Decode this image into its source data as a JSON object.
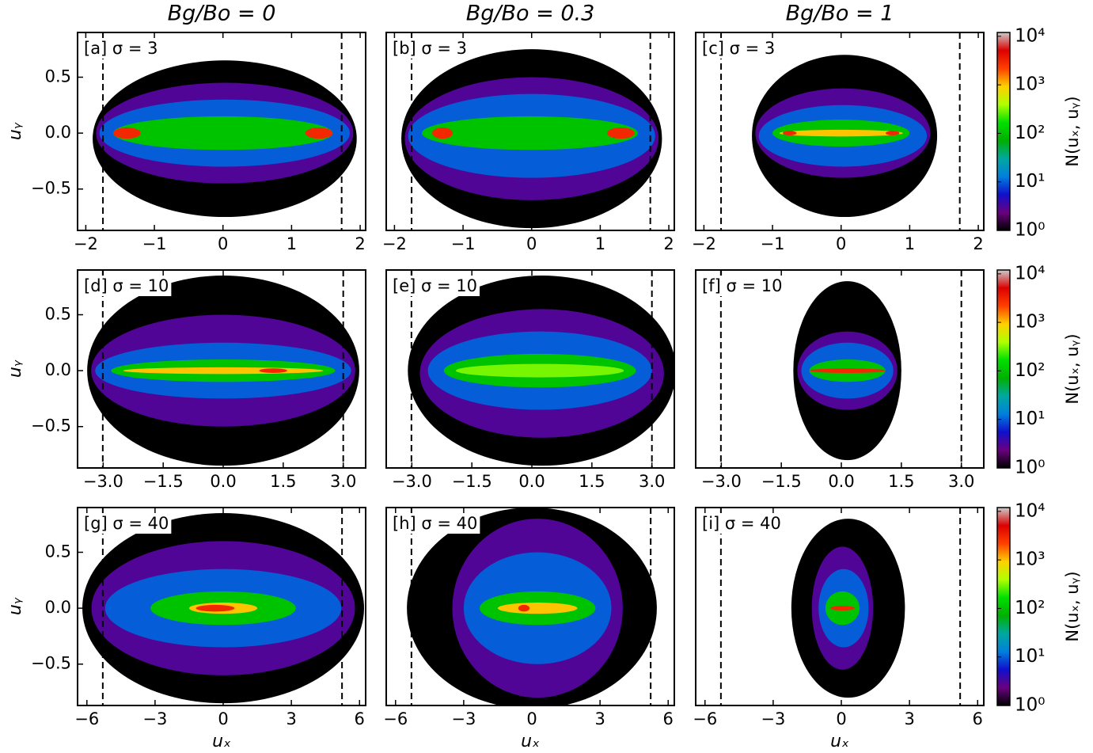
{
  "chart_data": [
    {
      "type": "heatmap",
      "title": "Bg/Bo = 0",
      "label": "[a] σ = 3",
      "ylabel": "uᵧ",
      "xlim": [
        -2.12,
        2.08
      ],
      "ylim": [
        -0.87,
        0.9
      ],
      "xticks": [
        {
          "value": -2,
          "label": "−2"
        },
        {
          "value": -1,
          "label": "−1"
        },
        0,
        1,
        2
      ],
      "yticks": [
        {
          "value": -0.5,
          "label": "−0.5"
        },
        {
          "value": 0,
          "label": "0.0"
        },
        0.5
      ],
      "vlines": [
        -1.75,
        1.73
      ],
      "regions": [
        {
          "level": 1,
          "ux": [
            -1.9,
            1.95
          ],
          "uy": [
            -0.75,
            0.65
          ]
        },
        {
          "level": 3,
          "ux": [
            -1.85,
            1.9
          ],
          "uy": [
            -0.45,
            0.45
          ]
        },
        {
          "level": 10,
          "ux": [
            -1.8,
            1.85
          ],
          "uy": [
            -0.3,
            0.3
          ]
        },
        {
          "level": 100,
          "ux": [
            -1.6,
            1.6
          ],
          "uy": [
            -0.15,
            0.15
          ]
        },
        {
          "level": 3000,
          "ux": [
            -1.6,
            -1.2
          ],
          "uy": [
            -0.05,
            0.05
          ]
        },
        {
          "level": 3000,
          "ux": [
            1.2,
            1.6
          ],
          "uy": [
            -0.05,
            0.05
          ]
        }
      ]
    },
    {
      "type": "heatmap",
      "title": "Bg/Bo = 0.3",
      "label": "[b] σ = 3",
      "xlim": [
        -2.12,
        2.08
      ],
      "ylim": [
        -0.87,
        0.9
      ],
      "xticks": [
        {
          "value": -2,
          "label": "−2"
        },
        {
          "value": -1,
          "label": "−1"
        },
        0,
        1,
        2
      ],
      "vlines": [
        -1.75,
        1.73
      ],
      "regions": [
        {
          "level": 1,
          "ux": [
            -1.9,
            1.9
          ],
          "uy": [
            -0.85,
            0.75
          ]
        },
        {
          "level": 3,
          "ux": [
            -1.85,
            1.85
          ],
          "uy": [
            -0.6,
            0.5
          ]
        },
        {
          "level": 10,
          "ux": [
            -1.8,
            1.8
          ],
          "uy": [
            -0.4,
            0.35
          ]
        },
        {
          "level": 100,
          "ux": [
            -1.6,
            1.55
          ],
          "uy": [
            -0.15,
            0.15
          ]
        },
        {
          "level": 3000,
          "ux": [
            -1.45,
            -1.15
          ],
          "uy": [
            -0.05,
            0.05
          ]
        },
        {
          "level": 3000,
          "ux": [
            1.1,
            1.5
          ],
          "uy": [
            -0.05,
            0.05
          ]
        }
      ]
    },
    {
      "type": "heatmap",
      "title": "Bg/Bo = 1",
      "label": "[c] σ = 3",
      "xlim": [
        -2.12,
        2.08
      ],
      "ylim": [
        -0.87,
        0.9
      ],
      "xticks": [
        {
          "value": -2,
          "label": "−2"
        },
        {
          "value": -1,
          "label": "−1"
        },
        0,
        1,
        2
      ],
      "vlines": [
        -1.75,
        1.73
      ],
      "regions": [
        {
          "level": 1,
          "ux": [
            -1.3,
            1.4
          ],
          "uy": [
            -0.75,
            0.7
          ]
        },
        {
          "level": 3,
          "ux": [
            -1.25,
            1.3
          ],
          "uy": [
            -0.4,
            0.4
          ]
        },
        {
          "level": 10,
          "ux": [
            -1.2,
            1.25
          ],
          "uy": [
            -0.3,
            0.25
          ]
        },
        {
          "level": 100,
          "ux": [
            -1.0,
            1.0
          ],
          "uy": [
            -0.12,
            0.12
          ]
        },
        {
          "level": 1000,
          "ux": [
            -0.9,
            0.9
          ],
          "uy": [
            -0.03,
            0.03
          ]
        },
        {
          "level": 3000,
          "ux": [
            -0.85,
            -0.65
          ],
          "uy": [
            -0.02,
            0.02
          ]
        },
        {
          "level": 3000,
          "ux": [
            0.65,
            0.85
          ],
          "uy": [
            -0.02,
            0.02
          ]
        }
      ],
      "colorbar": {
        "label": "N(uₓ, uᵧ)",
        "clim": [
          1,
          12000
        ],
        "log": true,
        "ticks": [
          {
            "value": 1,
            "label": "10⁰"
          },
          {
            "value": 10,
            "label": "10¹"
          },
          {
            "value": 100,
            "label": "10²"
          },
          {
            "value": 1000,
            "label": "10³"
          },
          {
            "value": 10000,
            "label": "10⁴"
          }
        ]
      }
    },
    {
      "type": "heatmap",
      "label": "[d] σ = 10",
      "ylabel": "uᵧ",
      "xlim": [
        -3.64,
        3.56
      ],
      "ylim": [
        -0.87,
        0.9
      ],
      "xticks": [
        {
          "value": -3,
          "label": "−3.0"
        },
        {
          "value": -1.5,
          "label": "−1.5"
        },
        {
          "value": 0,
          "label": "0.0"
        },
        1.5,
        {
          "value": 3,
          "label": "3.0"
        }
      ],
      "yticks": [
        {
          "value": -0.5,
          "label": "−0.5"
        },
        {
          "value": 0,
          "label": "0.0"
        },
        0.5
      ],
      "vlines": [
        -3.01,
        3.0
      ],
      "regions": [
        {
          "level": 1,
          "ux": [
            -3.4,
            3.4
          ],
          "uy": [
            -0.85,
            0.85
          ]
        },
        {
          "level": 3,
          "ux": [
            -3.3,
            3.3
          ],
          "uy": [
            -0.5,
            0.5
          ]
        },
        {
          "level": 10,
          "ux": [
            -3.2,
            3.2
          ],
          "uy": [
            -0.25,
            0.25
          ]
        },
        {
          "level": 100,
          "ux": [
            -2.8,
            2.8
          ],
          "uy": [
            -0.1,
            0.1
          ]
        },
        {
          "level": 1000,
          "ux": [
            -2.5,
            2.5
          ],
          "uy": [
            -0.03,
            0.03
          ]
        },
        {
          "level": 3000,
          "ux": [
            0.9,
            1.6
          ],
          "uy": [
            -0.02,
            0.02
          ]
        }
      ]
    },
    {
      "type": "heatmap",
      "label": "[e] σ = 10",
      "xlim": [
        -3.64,
        3.56
      ],
      "ylim": [
        -0.87,
        0.9
      ],
      "xticks": [
        {
          "value": -3,
          "label": "−3.0"
        },
        {
          "value": -1.5,
          "label": "−1.5"
        },
        {
          "value": 0,
          "label": "0.0"
        },
        1.5,
        {
          "value": 3,
          "label": "3.0"
        }
      ],
      "vlines": [
        -3.01,
        3.0
      ],
      "regions": [
        {
          "level": 1,
          "ux": [
            -3.1,
            3.6
          ],
          "uy": [
            -0.85,
            0.85
          ]
        },
        {
          "level": 3,
          "ux": [
            -2.8,
            3.3
          ],
          "uy": [
            -0.6,
            0.55
          ]
        },
        {
          "level": 10,
          "ux": [
            -2.6,
            3.0
          ],
          "uy": [
            -0.35,
            0.35
          ]
        },
        {
          "level": 100,
          "ux": [
            -2.2,
            2.6
          ],
          "uy": [
            -0.15,
            0.15
          ]
        },
        {
          "level": 300,
          "ux": [
            -1.9,
            2.3
          ],
          "uy": [
            -0.06,
            0.06
          ]
        }
      ]
    },
    {
      "type": "heatmap",
      "label": "[f] σ = 10",
      "xlim": [
        -3.64,
        3.56
      ],
      "ylim": [
        -0.87,
        0.9
      ],
      "xticks": [
        {
          "value": -3,
          "label": "−3.0"
        },
        {
          "value": -1.5,
          "label": "−1.5"
        },
        {
          "value": 0,
          "label": "0.0"
        },
        1.5,
        {
          "value": 3,
          "label": "3.0"
        }
      ],
      "vlines": [
        -3.01,
        3.0
      ],
      "regions": [
        {
          "level": 1,
          "ux": [
            -1.2,
            1.5
          ],
          "uy": [
            -0.8,
            0.8
          ]
        },
        {
          "level": 3,
          "ux": [
            -1.1,
            1.4
          ],
          "uy": [
            -0.35,
            0.35
          ]
        },
        {
          "level": 10,
          "ux": [
            -1.0,
            1.3
          ],
          "uy": [
            -0.25,
            0.25
          ]
        },
        {
          "level": 100,
          "ux": [
            -0.8,
            1.1
          ],
          "uy": [
            -0.1,
            0.1
          ]
        },
        {
          "level": 3000,
          "ux": [
            -0.8,
            1.1
          ],
          "uy": [
            -0.02,
            0.02
          ]
        }
      ],
      "colorbar": {
        "label": "N(uₓ, uᵧ)",
        "clim": [
          1,
          12000
        ],
        "log": true,
        "ticks": [
          {
            "value": 1,
            "label": "10⁰"
          },
          {
            "value": 10,
            "label": "10¹"
          },
          {
            "value": 100,
            "label": "10²"
          },
          {
            "value": 1000,
            "label": "10³"
          },
          {
            "value": 10000,
            "label": "10⁴"
          }
        ]
      }
    },
    {
      "type": "heatmap",
      "label": "[g] σ = 40",
      "ylabel": "uᵧ",
      "xlabel": "uₓ",
      "xlim": [
        -6.41,
        6.27
      ],
      "ylim": [
        -0.87,
        0.9
      ],
      "xticks": [
        {
          "value": -6,
          "label": "−6"
        },
        {
          "value": -3,
          "label": "−3"
        },
        0,
        3,
        6
      ],
      "yticks": [
        {
          "value": -0.5,
          "label": "−0.5"
        },
        {
          "value": 0,
          "label": "0.0"
        },
        0.5
      ],
      "vlines": [
        -5.3,
        5.23
      ],
      "regions": [
        {
          "level": 1,
          "ux": [
            -6.2,
            6.2
          ],
          "uy": [
            -0.85,
            0.85
          ]
        },
        {
          "level": 3,
          "ux": [
            -5.8,
            5.8
          ],
          "uy": [
            -0.6,
            0.6
          ]
        },
        {
          "level": 10,
          "ux": [
            -5.2,
            5.2
          ],
          "uy": [
            -0.35,
            0.35
          ]
        },
        {
          "level": 100,
          "ux": [
            -3.2,
            3.2
          ],
          "uy": [
            -0.15,
            0.15
          ]
        },
        {
          "level": 1000,
          "ux": [
            -1.5,
            1.5
          ],
          "uy": [
            -0.05,
            0.05
          ]
        },
        {
          "level": 3000,
          "ux": [
            -1.2,
            0.5
          ],
          "uy": [
            -0.03,
            0.03
          ]
        }
      ]
    },
    {
      "type": "heatmap",
      "label": "[h] σ = 40",
      "xlabel": "uₓ",
      "xlim": [
        -6.41,
        6.27
      ],
      "ylim": [
        -0.87,
        0.9
      ],
      "xticks": [
        {
          "value": -6,
          "label": "−6"
        },
        {
          "value": -3,
          "label": "−3"
        },
        0,
        3,
        6
      ],
      "vlines": [
        -5.3,
        5.23
      ],
      "regions": [
        {
          "level": 1,
          "ux": [
            -5.5,
            5.5
          ],
          "uy": [
            -0.9,
            0.9
          ]
        },
        {
          "level": 3,
          "ux": [
            -3.5,
            4.0
          ],
          "uy": [
            -0.8,
            0.8
          ]
        },
        {
          "level": 10,
          "ux": [
            -3.0,
            3.5
          ],
          "uy": [
            -0.5,
            0.5
          ]
        },
        {
          "level": 100,
          "ux": [
            -2.3,
            2.8
          ],
          "uy": [
            -0.15,
            0.15
          ]
        },
        {
          "level": 1000,
          "ux": [
            -1.5,
            2.0
          ],
          "uy": [
            -0.05,
            0.05
          ]
        },
        {
          "level": 3000,
          "ux": [
            -0.6,
            -0.1
          ],
          "uy": [
            -0.03,
            0.03
          ]
        }
      ]
    },
    {
      "type": "heatmap",
      "label": "[i] σ = 40",
      "xlabel": "uₓ",
      "xlim": [
        -6.41,
        6.27
      ],
      "ylim": [
        -0.87,
        0.9
      ],
      "xticks": [
        {
          "value": -6,
          "label": "−6"
        },
        {
          "value": -3,
          "label": "−3"
        },
        0,
        3,
        6
      ],
      "vlines": [
        -5.3,
        5.23
      ],
      "regions": [
        {
          "level": 1,
          "ux": [
            -2.2,
            2.8
          ],
          "uy": [
            -0.8,
            0.8
          ]
        },
        {
          "level": 3,
          "ux": [
            -1.3,
            1.4
          ],
          "uy": [
            -0.55,
            0.55
          ]
        },
        {
          "level": 10,
          "ux": [
            -1.0,
            1.2
          ],
          "uy": [
            -0.35,
            0.35
          ]
        },
        {
          "level": 100,
          "ux": [
            -0.7,
            0.8
          ],
          "uy": [
            -0.15,
            0.15
          ]
        },
        {
          "level": 3000,
          "ux": [
            -0.5,
            0.6
          ],
          "uy": [
            -0.02,
            0.02
          ]
        }
      ],
      "colorbar": {
        "label": "N(uₓ, uᵧ)",
        "clim": [
          1,
          12000
        ],
        "log": true,
        "ticks": [
          {
            "value": 1,
            "label": "10⁰"
          },
          {
            "value": 10,
            "label": "10¹"
          },
          {
            "value": 100,
            "label": "10²"
          },
          {
            "value": 1000,
            "label": "10³"
          },
          {
            "value": 10000,
            "label": "10⁴"
          }
        ]
      }
    }
  ],
  "colormap": [
    "#000000",
    "#6a0080",
    "#1010cc",
    "#0080dd",
    "#00a8a0",
    "#00b000",
    "#00e000",
    "#b0ff00",
    "#ffd000",
    "#ff4000",
    "#dd0000",
    "#cccccc"
  ]
}
